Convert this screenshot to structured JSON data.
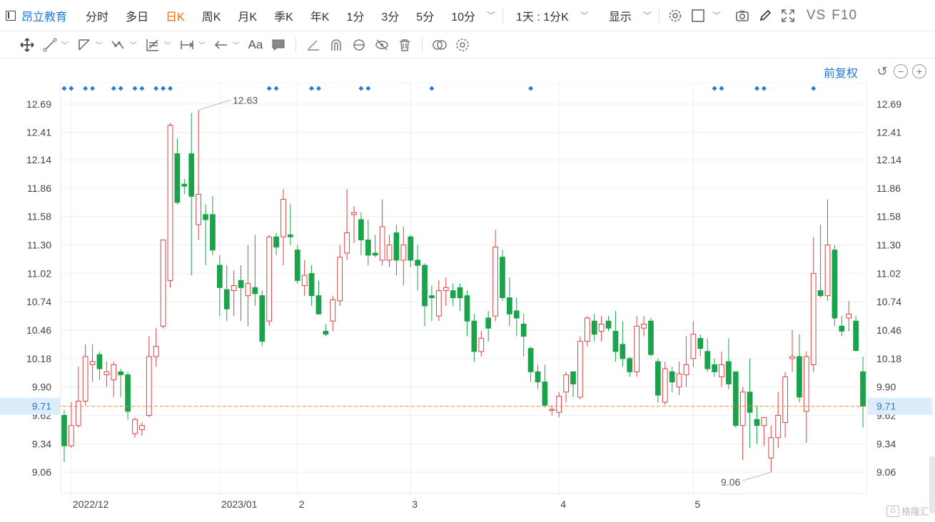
{
  "toolbar": {
    "stock_name": "昂立教育",
    "periods": [
      "分时",
      "多日",
      "日K",
      "周K",
      "月K",
      "季K",
      "年K",
      "1分",
      "3分",
      "5分",
      "10分"
    ],
    "active_period": "日K",
    "interval": "1天 : 1分K",
    "display_label": "显示",
    "vs_label": "VS",
    "f10_label": "F10"
  },
  "adjust": {
    "label": "前复权"
  },
  "watermark": {
    "text": "格隆汇"
  },
  "colors": {
    "up": "#e04040",
    "down": "#1aa34a",
    "marker": "#2f7ad6",
    "current_line": "#f08a3c"
  },
  "chart_data": {
    "type": "candlestick",
    "y_ticks": [
      "12.69",
      "12.41",
      "12.14",
      "11.86",
      "11.58",
      "11.30",
      "11.02",
      "10.74",
      "10.46",
      "10.18",
      "9.90",
      "9.62",
      "9.34",
      "9.06"
    ],
    "y_range": [
      8.85,
      12.9
    ],
    "x_labels": [
      {
        "label": "2022/12",
        "index": 1
      },
      {
        "label": "2023/01",
        "index": 22
      },
      {
        "label": "2",
        "index": 33
      },
      {
        "label": "3",
        "index": 49
      },
      {
        "label": "4",
        "index": 70
      },
      {
        "label": "5",
        "index": 89
      }
    ],
    "current_price": "9.71",
    "max_note": "12.63",
    "min_note": "9.06",
    "marker_indices": [
      0,
      1,
      3,
      4,
      7,
      8,
      10,
      11,
      13,
      14,
      15,
      29,
      30,
      35,
      36,
      42,
      43,
      52,
      66,
      92,
      93,
      98,
      99,
      106
    ],
    "candles": [
      {
        "o": 9.62,
        "h": 9.67,
        "l": 9.16,
        "c": 9.32
      },
      {
        "o": 9.32,
        "h": 9.75,
        "l": 9.3,
        "c": 9.52
      },
      {
        "o": 9.52,
        "h": 10.1,
        "l": 9.5,
        "c": 9.76
      },
      {
        "o": 9.76,
        "h": 10.32,
        "l": 9.72,
        "c": 10.2
      },
      {
        "o": 10.12,
        "h": 10.32,
        "l": 9.95,
        "c": 10.15
      },
      {
        "o": 10.22,
        "h": 10.25,
        "l": 9.97,
        "c": 10.08
      },
      {
        "o": 10.02,
        "h": 10.15,
        "l": 9.9,
        "c": 10.05
      },
      {
        "o": 9.97,
        "h": 10.15,
        "l": 9.8,
        "c": 10.12
      },
      {
        "o": 10.05,
        "h": 10.08,
        "l": 9.8,
        "c": 10.02
      },
      {
        "o": 10.02,
        "h": 10.05,
        "l": 9.58,
        "c": 9.66
      },
      {
        "o": 9.44,
        "h": 9.6,
        "l": 9.4,
        "c": 9.58
      },
      {
        "o": 9.48,
        "h": 9.55,
        "l": 9.42,
        "c": 9.52
      },
      {
        "o": 9.62,
        "h": 10.4,
        "l": 9.6,
        "c": 10.2
      },
      {
        "o": 10.2,
        "h": 10.48,
        "l": 10.1,
        "c": 10.3
      },
      {
        "o": 10.5,
        "h": 11.35,
        "l": 10.48,
        "c": 11.35
      },
      {
        "o": 10.95,
        "h": 12.5,
        "l": 10.88,
        "c": 12.48
      },
      {
        "o": 12.2,
        "h": 12.35,
        "l": 11.7,
        "c": 11.72
      },
      {
        "o": 11.9,
        "h": 11.95,
        "l": 11.8,
        "c": 11.88
      },
      {
        "o": 12.2,
        "h": 12.6,
        "l": 11.0,
        "c": 11.78
      },
      {
        "o": 11.5,
        "h": 12.63,
        "l": 11.35,
        "c": 11.8
      },
      {
        "o": 11.6,
        "h": 11.7,
        "l": 11.1,
        "c": 11.55
      },
      {
        "o": 11.6,
        "h": 11.78,
        "l": 11.2,
        "c": 11.25
      },
      {
        "o": 11.1,
        "h": 11.2,
        "l": 10.6,
        "c": 10.88
      },
      {
        "o": 10.86,
        "h": 11.1,
        "l": 10.55,
        "c": 10.67
      },
      {
        "o": 10.85,
        "h": 11.05,
        "l": 10.6,
        "c": 10.9
      },
      {
        "o": 10.95,
        "h": 11.1,
        "l": 10.55,
        "c": 10.88
      },
      {
        "o": 10.8,
        "h": 11.3,
        "l": 10.5,
        "c": 10.92
      },
      {
        "o": 10.88,
        "h": 11.4,
        "l": 10.7,
        "c": 10.82
      },
      {
        "o": 10.8,
        "h": 10.85,
        "l": 10.3,
        "c": 10.35
      },
      {
        "o": 10.55,
        "h": 11.4,
        "l": 10.5,
        "c": 11.38
      },
      {
        "o": 11.38,
        "h": 11.42,
        "l": 11.2,
        "c": 11.28
      },
      {
        "o": 11.38,
        "h": 11.85,
        "l": 11.1,
        "c": 11.75
      },
      {
        "o": 11.4,
        "h": 11.7,
        "l": 11.3,
        "c": 11.38
      },
      {
        "o": 11.25,
        "h": 11.3,
        "l": 10.92,
        "c": 10.95
      },
      {
        "o": 10.9,
        "h": 11.15,
        "l": 10.8,
        "c": 11.0
      },
      {
        "o": 11.02,
        "h": 11.1,
        "l": 10.7,
        "c": 10.8
      },
      {
        "o": 10.8,
        "h": 10.95,
        "l": 10.62,
        "c": 10.62
      },
      {
        "o": 10.45,
        "h": 10.52,
        "l": 10.4,
        "c": 10.42
      },
      {
        "o": 10.55,
        "h": 10.8,
        "l": 10.45,
        "c": 10.76
      },
      {
        "o": 10.75,
        "h": 11.3,
        "l": 10.7,
        "c": 11.18
      },
      {
        "o": 11.22,
        "h": 11.85,
        "l": 11.15,
        "c": 11.42
      },
      {
        "o": 11.6,
        "h": 11.68,
        "l": 11.32,
        "c": 11.62
      },
      {
        "o": 11.55,
        "h": 11.62,
        "l": 11.2,
        "c": 11.35
      },
      {
        "o": 11.35,
        "h": 11.55,
        "l": 11.1,
        "c": 11.2
      },
      {
        "o": 11.22,
        "h": 11.4,
        "l": 11.18,
        "c": 11.2
      },
      {
        "o": 11.15,
        "h": 11.75,
        "l": 11.1,
        "c": 11.48
      },
      {
        "o": 11.15,
        "h": 11.4,
        "l": 11.08,
        "c": 11.3
      },
      {
        "o": 11.42,
        "h": 11.5,
        "l": 11.0,
        "c": 11.15
      },
      {
        "o": 11.15,
        "h": 11.48,
        "l": 10.9,
        "c": 11.3
      },
      {
        "o": 11.38,
        "h": 11.4,
        "l": 11.08,
        "c": 11.15
      },
      {
        "o": 11.15,
        "h": 11.3,
        "l": 10.85,
        "c": 11.1
      },
      {
        "o": 11.1,
        "h": 11.12,
        "l": 10.5,
        "c": 10.7
      },
      {
        "o": 10.8,
        "h": 10.9,
        "l": 10.55,
        "c": 10.78
      },
      {
        "o": 10.6,
        "h": 10.95,
        "l": 10.55,
        "c": 10.85
      },
      {
        "o": 10.85,
        "h": 10.98,
        "l": 10.7,
        "c": 10.88
      },
      {
        "o": 10.85,
        "h": 10.92,
        "l": 10.7,
        "c": 10.78
      },
      {
        "o": 10.88,
        "h": 10.92,
        "l": 10.65,
        "c": 10.78
      },
      {
        "o": 10.8,
        "h": 10.85,
        "l": 10.4,
        "c": 10.55
      },
      {
        "o": 10.55,
        "h": 10.62,
        "l": 10.15,
        "c": 10.25
      },
      {
        "o": 10.25,
        "h": 10.45,
        "l": 10.2,
        "c": 10.38
      },
      {
        "o": 10.58,
        "h": 10.65,
        "l": 10.35,
        "c": 10.48
      },
      {
        "o": 10.6,
        "h": 11.45,
        "l": 10.55,
        "c": 11.28
      },
      {
        "o": 11.18,
        "h": 11.25,
        "l": 10.75,
        "c": 10.78
      },
      {
        "o": 10.78,
        "h": 10.98,
        "l": 10.5,
        "c": 10.62
      },
      {
        "o": 10.65,
        "h": 10.78,
        "l": 10.4,
        "c": 10.58
      },
      {
        "o": 10.52,
        "h": 10.62,
        "l": 10.2,
        "c": 10.4
      },
      {
        "o": 10.28,
        "h": 10.3,
        "l": 9.95,
        "c": 10.05
      },
      {
        "o": 10.05,
        "h": 10.12,
        "l": 9.88,
        "c": 9.95
      },
      {
        "o": 9.95,
        "h": 10.12,
        "l": 9.7,
        "c": 9.72
      },
      {
        "o": 9.68,
        "h": 9.72,
        "l": 9.62,
        "c": 9.68
      },
      {
        "o": 9.65,
        "h": 9.85,
        "l": 9.6,
        "c": 9.81
      },
      {
        "o": 9.85,
        "h": 10.05,
        "l": 9.75,
        "c": 10.02
      },
      {
        "o": 10.05,
        "h": 10.05,
        "l": 9.8,
        "c": 9.93
      },
      {
        "o": 9.8,
        "h": 10.4,
        "l": 9.78,
        "c": 10.35
      },
      {
        "o": 10.35,
        "h": 10.6,
        "l": 10.3,
        "c": 10.58
      },
      {
        "o": 10.55,
        "h": 10.62,
        "l": 10.35,
        "c": 10.42
      },
      {
        "o": 10.45,
        "h": 10.6,
        "l": 10.35,
        "c": 10.52
      },
      {
        "o": 10.55,
        "h": 10.6,
        "l": 10.45,
        "c": 10.48
      },
      {
        "o": 10.45,
        "h": 10.65,
        "l": 10.15,
        "c": 10.25
      },
      {
        "o": 10.32,
        "h": 10.55,
        "l": 10.1,
        "c": 10.18
      },
      {
        "o": 10.18,
        "h": 10.2,
        "l": 10.0,
        "c": 10.05
      },
      {
        "o": 10.05,
        "h": 10.6,
        "l": 10.0,
        "c": 10.5
      },
      {
        "o": 10.48,
        "h": 10.6,
        "l": 10.4,
        "c": 10.52
      },
      {
        "o": 10.55,
        "h": 10.58,
        "l": 10.2,
        "c": 10.22
      },
      {
        "o": 10.15,
        "h": 10.18,
        "l": 9.75,
        "c": 9.82
      },
      {
        "o": 9.75,
        "h": 10.15,
        "l": 9.72,
        "c": 10.08
      },
      {
        "o": 10.05,
        "h": 10.1,
        "l": 9.85,
        "c": 9.95
      },
      {
        "o": 9.9,
        "h": 10.15,
        "l": 9.82,
        "c": 10.03
      },
      {
        "o": 10.02,
        "h": 10.4,
        "l": 9.9,
        "c": 10.12
      },
      {
        "o": 10.18,
        "h": 10.55,
        "l": 10.1,
        "c": 10.42
      },
      {
        "o": 10.38,
        "h": 10.42,
        "l": 10.2,
        "c": 10.28
      },
      {
        "o": 10.25,
        "h": 10.38,
        "l": 10.05,
        "c": 10.08
      },
      {
        "o": 10.12,
        "h": 10.18,
        "l": 10.0,
        "c": 10.05
      },
      {
        "o": 10.0,
        "h": 10.25,
        "l": 9.9,
        "c": 10.12
      },
      {
        "o": 10.15,
        "h": 10.38,
        "l": 9.88,
        "c": 9.93
      },
      {
        "o": 10.05,
        "h": 10.05,
        "l": 9.5,
        "c": 9.52
      },
      {
        "o": 9.52,
        "h": 9.9,
        "l": 9.18,
        "c": 9.85
      },
      {
        "o": 9.85,
        "h": 10.18,
        "l": 9.3,
        "c": 9.65
      },
      {
        "o": 9.58,
        "h": 9.72,
        "l": 9.34,
        "c": 9.52
      },
      {
        "o": 9.52,
        "h": 9.6,
        "l": 9.32,
        "c": 9.6
      },
      {
        "o": 9.2,
        "h": 9.52,
        "l": 9.06,
        "c": 9.4
      },
      {
        "o": 9.4,
        "h": 9.85,
        "l": 9.3,
        "c": 9.62
      },
      {
        "o": 9.55,
        "h": 10.05,
        "l": 9.4,
        "c": 10.0
      },
      {
        "o": 10.18,
        "h": 10.46,
        "l": 10.05,
        "c": 10.2
      },
      {
        "o": 10.2,
        "h": 10.42,
        "l": 9.75,
        "c": 9.8
      },
      {
        "o": 9.66,
        "h": 10.25,
        "l": 9.35,
        "c": 10.2
      },
      {
        "o": 10.12,
        "h": 11.38,
        "l": 10.05,
        "c": 11.02
      },
      {
        "o": 10.85,
        "h": 11.5,
        "l": 10.78,
        "c": 10.8
      },
      {
        "o": 10.8,
        "h": 11.75,
        "l": 10.75,
        "c": 11.3
      },
      {
        "o": 11.25,
        "h": 11.3,
        "l": 10.5,
        "c": 10.58
      },
      {
        "o": 10.5,
        "h": 10.6,
        "l": 10.4,
        "c": 10.45
      },
      {
        "o": 10.58,
        "h": 10.75,
        "l": 10.45,
        "c": 10.62
      },
      {
        "o": 10.55,
        "h": 10.6,
        "l": 10.25,
        "c": 10.26
      },
      {
        "o": 10.05,
        "h": 10.2,
        "l": 9.5,
        "c": 9.71
      }
    ]
  }
}
